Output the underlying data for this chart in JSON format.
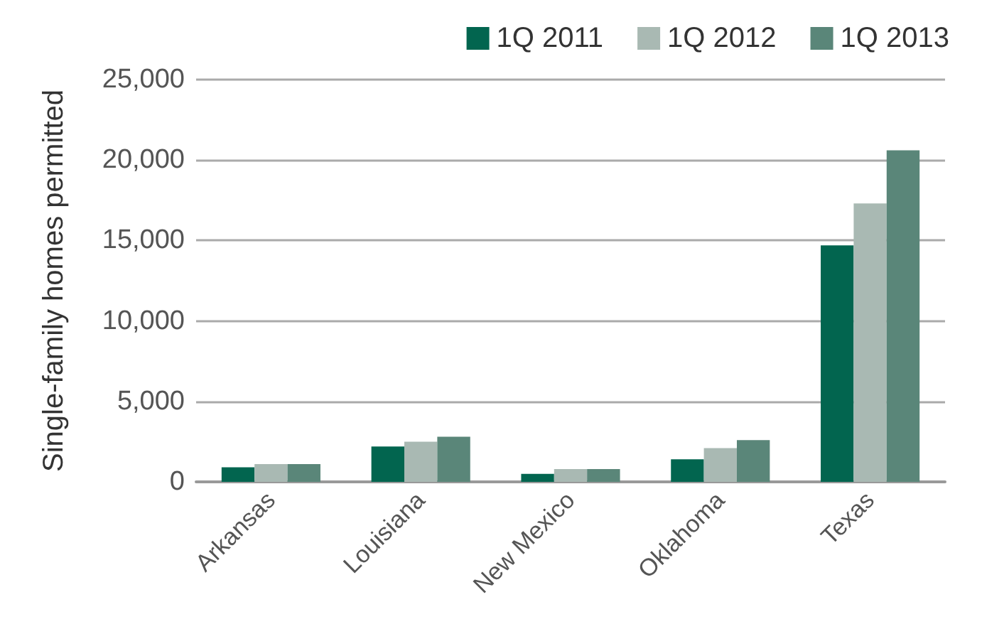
{
  "chart_data": {
    "type": "bar",
    "ylabel": "Single-family homes permitted",
    "categories": [
      "Arkansas",
      "Louisiana",
      "New Mexico",
      "Oklahoma",
      "Texas"
    ],
    "series": [
      {
        "name": "1Q 2011",
        "color": "#02654f",
        "values": [
          900,
          2200,
          500,
          1400,
          14700
        ]
      },
      {
        "name": "1Q 2012",
        "color": "#a9b9b3",
        "values": [
          1100,
          2500,
          800,
          2100,
          17300
        ]
      },
      {
        "name": "1Q 2013",
        "color": "#5a8679",
        "values": [
          1100,
          2800,
          800,
          2600,
          20600
        ]
      }
    ],
    "ylim": [
      0,
      25000
    ],
    "yticks": [
      0,
      {
        "value": 5000,
        "label": "5,000"
      },
      {
        "value": 10000,
        "label": "10,000"
      },
      {
        "value": 15000,
        "label": "15,000"
      },
      {
        "value": 20000,
        "label": "20,000"
      },
      {
        "value": 25000,
        "label": "25,000"
      }
    ],
    "grid": "y",
    "legend": "top right"
  }
}
